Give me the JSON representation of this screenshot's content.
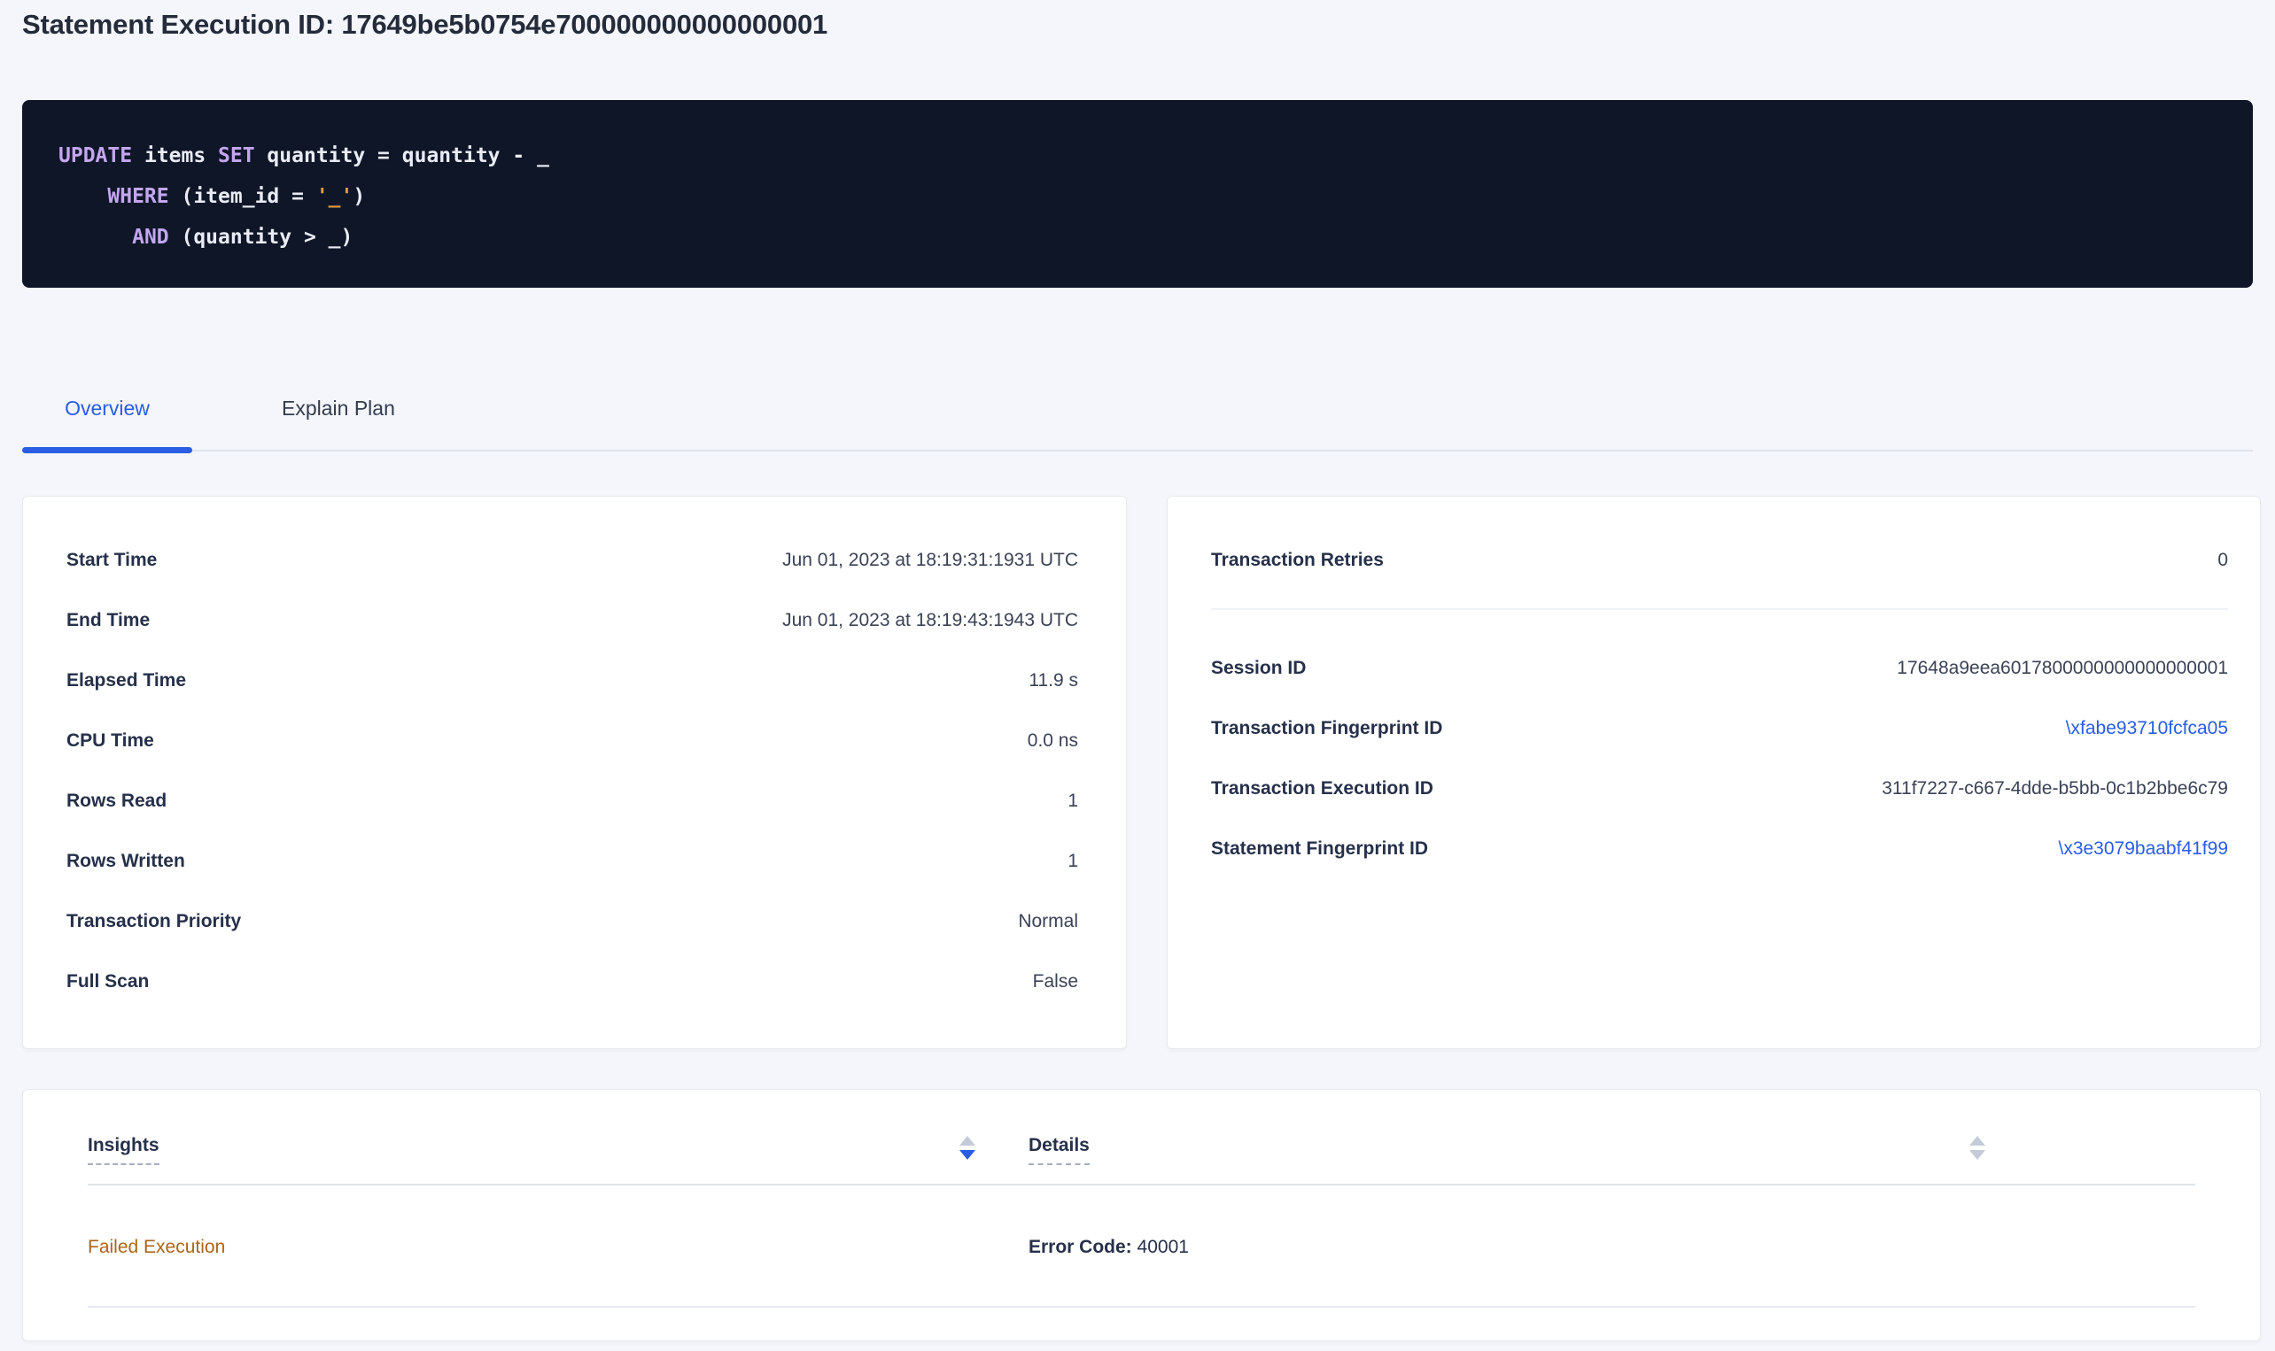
{
  "colors": {
    "page_background": "#f4f6fb",
    "accent_blue": "#2a5ce4",
    "sql_background": "#0f1628",
    "sql_keyword": "#c3a6ef",
    "sql_string": "#e09c3f",
    "insight_warning": "#ad6517"
  },
  "header": {
    "title": "Statement Execution ID: 17649be5b0754e700000000000000001"
  },
  "sql": {
    "lines": [
      [
        {
          "t": "UPDATE",
          "c": "kw"
        },
        {
          "t": " items ",
          "c": "pl"
        },
        {
          "t": "SET",
          "c": "kw"
        },
        {
          "t": " quantity = quantity - _",
          "c": "pl"
        }
      ],
      [
        {
          "t": "    ",
          "c": "pl"
        },
        {
          "t": "WHERE",
          "c": "kw"
        },
        {
          "t": " (item_id = ",
          "c": "pl"
        },
        {
          "t": "'_'",
          "c": "str"
        },
        {
          "t": ")",
          "c": "pl"
        }
      ],
      [
        {
          "t": "      ",
          "c": "pl"
        },
        {
          "t": "AND",
          "c": "kw"
        },
        {
          "t": " (quantity > _)",
          "c": "pl"
        }
      ]
    ]
  },
  "tabs": [
    {
      "label": "Overview",
      "active": true
    },
    {
      "label": "Explain Plan",
      "active": false
    }
  ],
  "overview_card": {
    "rows": [
      {
        "label": "Start Time",
        "value": "Jun 01, 2023 at 18:19:31:1931 UTC"
      },
      {
        "label": "End Time",
        "value": "Jun 01, 2023 at 18:19:43:1943 UTC"
      },
      {
        "label": "Elapsed Time",
        "value": "11.9 s"
      },
      {
        "label": "CPU Time",
        "value": "0.0 ns"
      },
      {
        "label": "Rows Read",
        "value": "1"
      },
      {
        "label": "Rows Written",
        "value": "1"
      },
      {
        "label": "Transaction Priority",
        "value": "Normal"
      },
      {
        "label": "Full Scan",
        "value": "False"
      }
    ]
  },
  "transaction_card": {
    "retries": {
      "label": "Transaction Retries",
      "value": "0"
    },
    "rows": [
      {
        "label": "Session ID",
        "value": "17648a9eea6017800000000000000001",
        "link": false
      },
      {
        "label": "Transaction Fingerprint ID",
        "value": "\\xfabe93710fcfca05",
        "link": true
      },
      {
        "label": "Transaction Execution ID",
        "value": "311f7227-c667-4dde-b5bb-0c1b2bbe6c79",
        "link": false
      },
      {
        "label": "Statement Fingerprint ID",
        "value": "\\x3e3079baabf41f99",
        "link": true
      }
    ]
  },
  "insights_table": {
    "columns": [
      {
        "label": "Insights",
        "sort": "desc"
      },
      {
        "label": "Details",
        "sort": "none"
      }
    ],
    "rows": [
      {
        "insight": "Failed Execution",
        "details_label": "Error Code:",
        "details_value": "40001"
      }
    ]
  }
}
